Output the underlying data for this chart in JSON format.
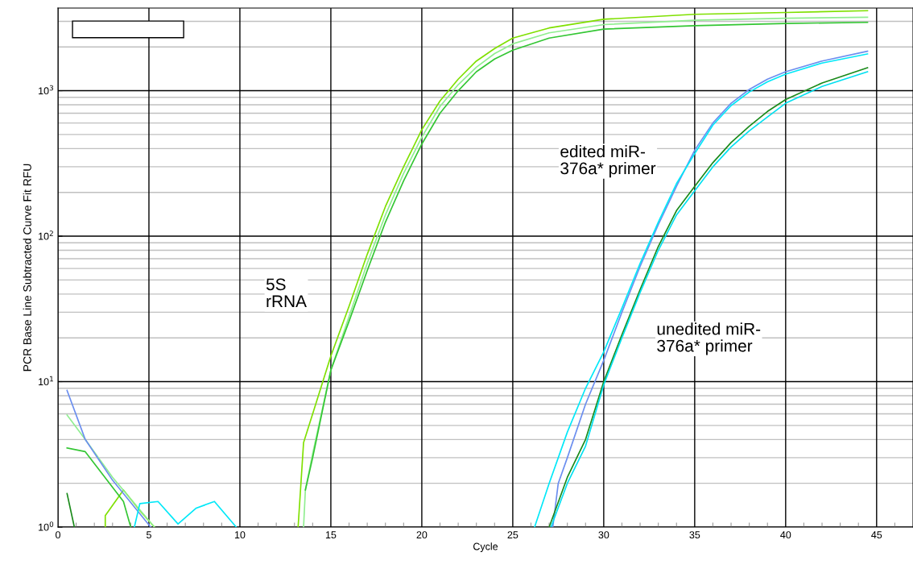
{
  "chart_data": {
    "type": "line",
    "xlabel": "Cycle",
    "ylabel": "PCR Base Line Subtracted Curve Fit RFU",
    "log": "y",
    "xlim": [
      0,
      47
    ],
    "ylim": [
      1,
      3700
    ],
    "grid": true,
    "legend": false,
    "marker": "none",
    "line_style": "solid",
    "xticks": [
      0,
      {
        "value": 1,
        "label": null
      },
      {
        "value": 2,
        "label": null
      },
      {
        "value": 3,
        "label": null
      },
      {
        "value": 4,
        "label": null
      },
      5,
      {
        "value": 6,
        "label": null
      },
      {
        "value": 7,
        "label": null
      },
      {
        "value": 8,
        "label": null
      },
      {
        "value": 9,
        "label": null
      },
      10,
      {
        "value": 11,
        "label": null
      },
      {
        "value": 12,
        "label": null
      },
      {
        "value": 13,
        "label": null
      },
      {
        "value": 14,
        "label": null
      },
      15,
      {
        "value": 16,
        "label": null
      },
      {
        "value": 17,
        "label": null
      },
      {
        "value": 18,
        "label": null
      },
      {
        "value": 19,
        "label": null
      },
      20,
      {
        "value": 21,
        "label": null
      },
      {
        "value": 22,
        "label": null
      },
      {
        "value": 23,
        "label": null
      },
      {
        "value": 24,
        "label": null
      },
      25,
      {
        "value": 26,
        "label": null
      },
      {
        "value": 27,
        "label": null
      },
      {
        "value": 28,
        "label": null
      },
      {
        "value": 29,
        "label": null
      },
      30,
      {
        "value": 31,
        "label": null
      },
      {
        "value": 32,
        "label": null
      },
      {
        "value": 33,
        "label": null
      },
      {
        "value": 34,
        "label": null
      },
      35,
      {
        "value": 36,
        "label": null
      },
      {
        "value": 37,
        "label": null
      },
      {
        "value": 38,
        "label": null
      },
      {
        "value": 39,
        "label": null
      },
      40,
      {
        "value": 41,
        "label": null
      },
      {
        "value": 42,
        "label": null
      },
      {
        "value": 43,
        "label": null
      },
      {
        "value": 44,
        "label": null
      },
      45,
      {
        "value": 46,
        "label": null
      }
    ],
    "yticks": [
      {
        "value": 1,
        "label": "10$^{0}$"
      },
      {
        "value": 2,
        "label": null
      },
      {
        "value": 3,
        "label": null
      },
      {
        "value": 4,
        "label": null
      },
      {
        "value": 5,
        "label": null
      },
      {
        "value": 6,
        "label": null
      },
      {
        "value": 7,
        "label": null
      },
      {
        "value": 8,
        "label": null
      },
      {
        "value": 9,
        "label": null
      },
      {
        "value": 10,
        "label": "10$^{1}$"
      },
      {
        "value": 20,
        "label": null
      },
      {
        "value": 30,
        "label": null
      },
      {
        "value": 40,
        "label": null
      },
      {
        "value": 50,
        "label": null
      },
      {
        "value": 60,
        "label": null
      },
      {
        "value": 70,
        "label": null
      },
      {
        "value": 80,
        "label": null
      },
      {
        "value": 90,
        "label": null
      },
      {
        "value": 100,
        "label": "10$^{2}$"
      },
      {
        "value": 200,
        "label": null
      },
      {
        "value": 300,
        "label": null
      },
      {
        "value": 400,
        "label": null
      },
      {
        "value": 500,
        "label": null
      },
      {
        "value": 600,
        "label": null
      },
      {
        "value": 700,
        "label": null
      },
      {
        "value": 800,
        "label": null
      },
      {
        "value": 900,
        "label": null
      },
      {
        "value": 1000,
        "label": "10$^{3}$"
      },
      {
        "value": 2000,
        "label": null
      },
      {
        "value": 3000,
        "label": null
      }
    ],
    "series": [
      {
        "color": "#7fe000",
        "x": [
          2.6,
          2.6,
          3.6,
          4.5,
          5.3,
          null,
          13.2,
          13.5,
          14,
          15,
          16,
          17,
          18,
          19,
          20,
          21,
          22,
          23,
          24,
          25,
          27,
          30,
          35,
          40,
          44.5
        ],
        "values": [
          1.0,
          1.2,
          1.8,
          1.3,
          1.0,
          null,
          1.0,
          3.8,
          6,
          15,
          33,
          75,
          160,
          300,
          540,
          850,
          1200,
          1600,
          1950,
          2300,
          2700,
          3100,
          3350,
          3450,
          3550
        ]
      },
      {
        "color": "#90ee90",
        "x": [
          0.5,
          1.5,
          3,
          5.3,
          null,
          13.5,
          13.6,
          14,
          15,
          16,
          17,
          18,
          19,
          20,
          21,
          22,
          23,
          24,
          25,
          27,
          30,
          35,
          40,
          44.5
        ],
        "values": [
          5.9,
          4.0,
          2.2,
          1.0,
          null,
          1.0,
          1.8,
          3.2,
          12,
          28,
          65,
          140,
          270,
          480,
          780,
          1100,
          1450,
          1800,
          2100,
          2500,
          2850,
          3050,
          3150,
          3200
        ]
      },
      {
        "color": "#33c633",
        "x": [
          0.5,
          1.5,
          3.6,
          4.0,
          null,
          13.6,
          14,
          15,
          16,
          17,
          18,
          19,
          20,
          21,
          22,
          23,
          24,
          25,
          27,
          30,
          35,
          40,
          44.5
        ],
        "values": [
          3.5,
          3.3,
          1.5,
          1.0,
          null,
          1.8,
          3.0,
          12,
          26,
          58,
          125,
          240,
          430,
          700,
          1000,
          1350,
          1650,
          1900,
          2300,
          2650,
          2800,
          2900,
          2950
        ]
      },
      {
        "color": "#6b8eef",
        "x": [
          0.5,
          1.5,
          3,
          5.1,
          null,
          27.2,
          27.5,
          28,
          29,
          30,
          31,
          32,
          33,
          34,
          35,
          36,
          37,
          38,
          39,
          40,
          42,
          44.5
        ],
        "values": [
          8.7,
          4.0,
          2.1,
          1.0,
          null,
          1.0,
          2.0,
          3.0,
          7,
          14,
          30,
          62,
          120,
          220,
          390,
          600,
          820,
          1020,
          1200,
          1350,
          1600,
          1870
        ]
      },
      {
        "color": "#00e8f8",
        "x": [
          4.2,
          4.5,
          5.5,
          6.6,
          7.6,
          8.6,
          9.8,
          null,
          26.2,
          27,
          28,
          29,
          30,
          31,
          32,
          33,
          34,
          35,
          36,
          37,
          38,
          39,
          40,
          42,
          44.5
        ],
        "values": [
          1.0,
          1.45,
          1.5,
          1.05,
          1.35,
          1.5,
          1.0,
          null,
          1.0,
          2.0,
          4.5,
          9,
          16,
          32,
          65,
          125,
          230,
          370,
          580,
          790,
          980,
          1150,
          1300,
          1550,
          1790
        ]
      },
      {
        "color": "#1a8a1a",
        "x": [
          0.5,
          0.9,
          null,
          27,
          28,
          29,
          30,
          31,
          32,
          33,
          34,
          35,
          36,
          37,
          38,
          39,
          40,
          42,
          44.5
        ],
        "values": [
          1.7,
          1.0,
          null,
          1.0,
          2.2,
          4.0,
          10,
          21,
          43,
          85,
          150,
          220,
          320,
          440,
          570,
          720,
          870,
          1130,
          1440
        ]
      },
      {
        "color": "#00e0f0",
        "x": [
          27.1,
          28,
          29,
          30,
          31,
          32,
          33,
          34,
          35,
          36,
          37,
          38,
          39,
          40,
          42,
          44.5
        ],
        "values": [
          1.0,
          2.0,
          3.6,
          9.5,
          20,
          41,
          80,
          140,
          205,
          300,
          410,
          530,
          660,
          820,
          1070,
          1350
        ]
      }
    ],
    "annotations": [
      "5S\nrRNA",
      "edited miR-\n376a* primer",
      "unedited miR-\n376a* primer"
    ]
  }
}
